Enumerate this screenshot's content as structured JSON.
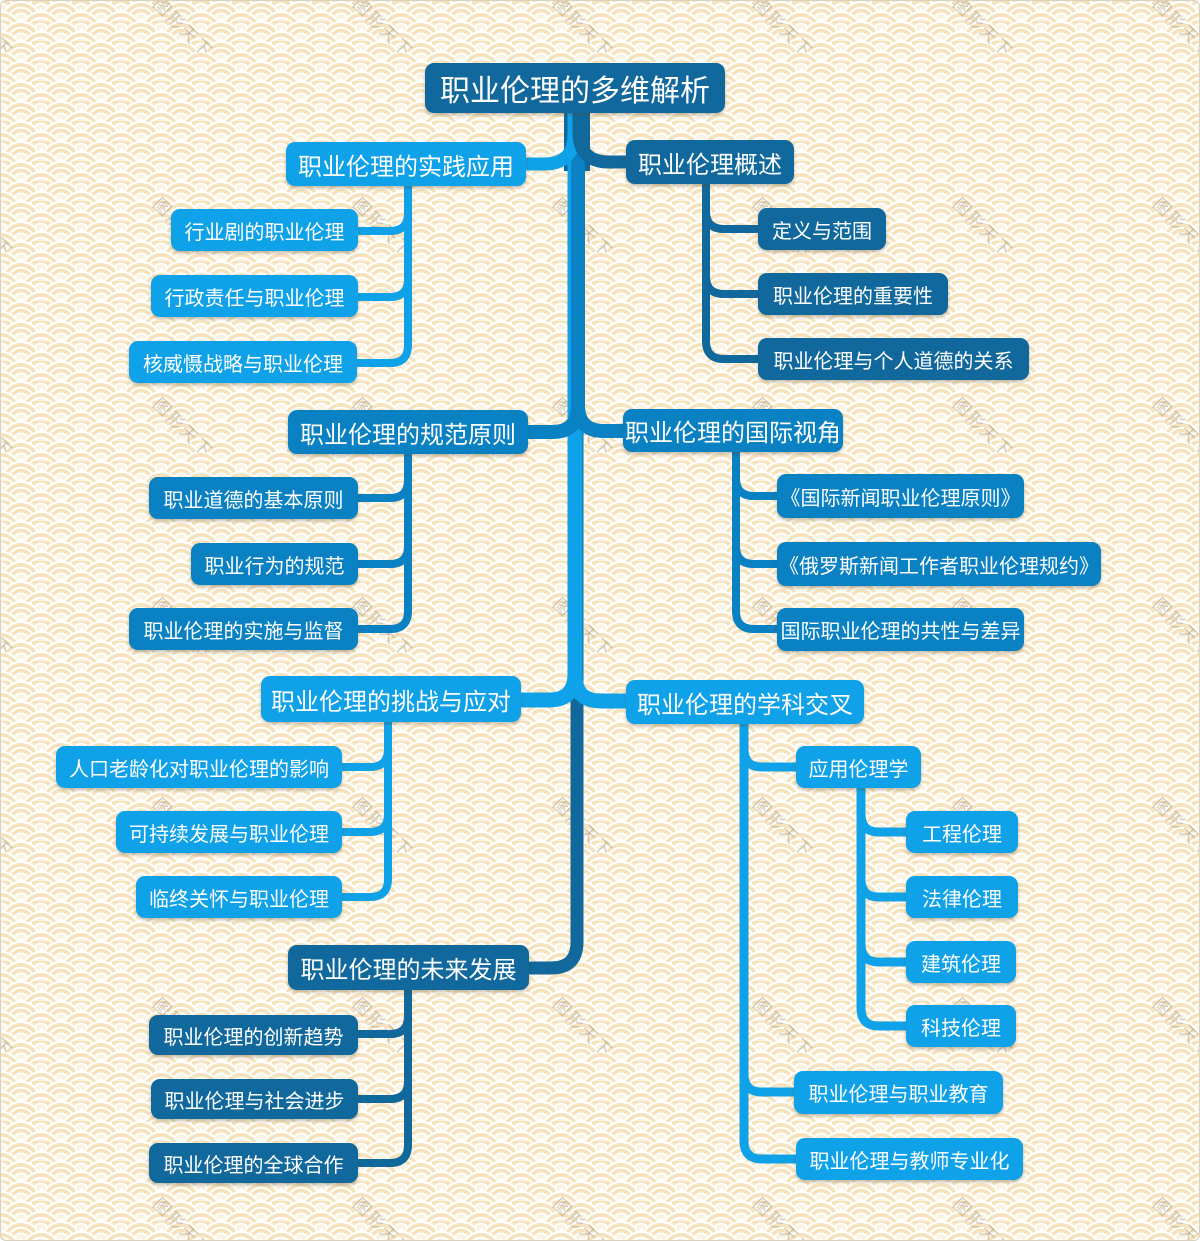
{
  "page": {
    "background_watermark": "图形天下"
  },
  "colors": {
    "dark_blue": "#11689c",
    "medium_blue": "#0a81c2",
    "light_blue": "#10a2e8",
    "background_cream": "#fbf2df",
    "pattern_ring_tan": "#f6e3bd",
    "text": "#ffffff"
  },
  "mindmap": {
    "root": "职业伦理的多维解析",
    "left": [
      {
        "label": "职业伦理的实践应用",
        "children": [
          "行业剧的职业伦理",
          "行政责任与职业伦理",
          "核威慑战略与职业伦理"
        ]
      },
      {
        "label": "职业伦理的规范原则",
        "children": [
          "职业道德的基本原则",
          "职业行为的规范",
          "职业伦理的实施与监督"
        ]
      },
      {
        "label": "职业伦理的挑战与应对",
        "children": [
          "人口老龄化对职业伦理的影响",
          "可持续发展与职业伦理",
          "临终关怀与职业伦理"
        ]
      },
      {
        "label": "职业伦理的未来发展",
        "children": [
          "职业伦理的创新趋势",
          "职业伦理与社会进步",
          "职业伦理的全球合作"
        ]
      }
    ],
    "right": [
      {
        "label": "职业伦理概述",
        "children": [
          "定义与范围",
          "职业伦理的重要性",
          "职业伦理与个人道德的关系"
        ]
      },
      {
        "label": "职业伦理的国际视角",
        "children": [
          "《国际新闻职业伦理原则》",
          "《俄罗斯新闻工作者职业伦理规约》",
          "国际职业伦理的共性与差异"
        ]
      },
      {
        "label": "职业伦理的学科交叉",
        "children": [
          "应用伦理学",
          "职业伦理与职业教育",
          "职业伦理与教师专业化"
        ],
        "applied_ethics_children": [
          "工程伦理",
          "法律伦理",
          "建筑伦理",
          "科技伦理"
        ]
      }
    ]
  }
}
